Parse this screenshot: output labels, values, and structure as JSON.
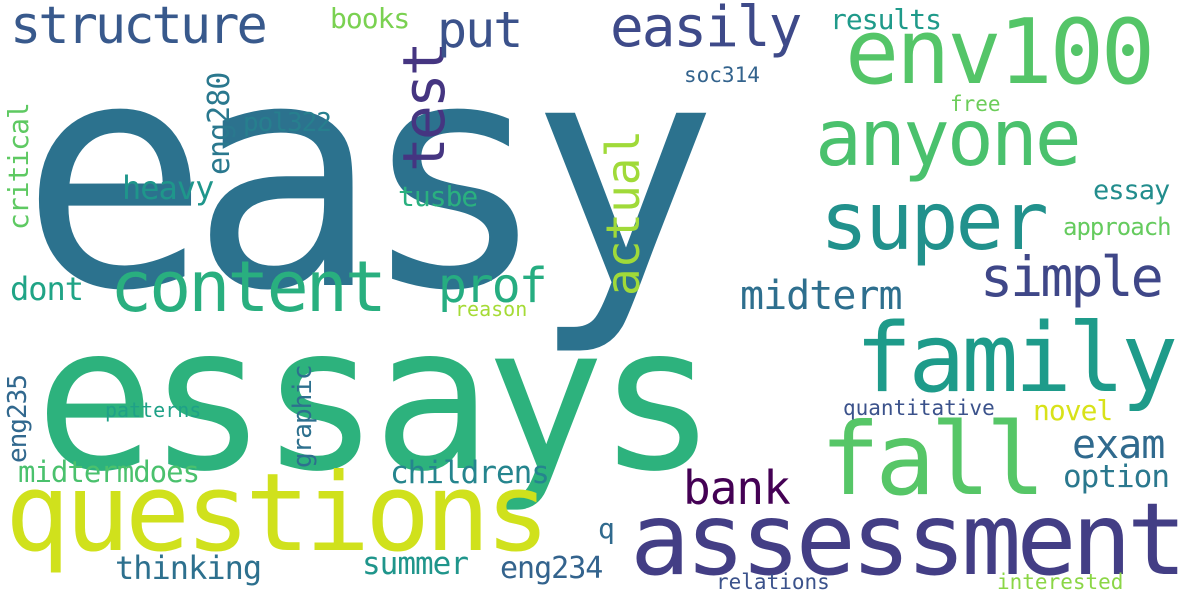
{
  "words": [
    {
      "key": "easy",
      "text": "easy",
      "color": "#2c728e"
    },
    {
      "key": "essays",
      "text": "essays",
      "color": "#2db27d"
    },
    {
      "key": "questions",
      "text": "questions",
      "color": "#d0e11c"
    },
    {
      "key": "assessment",
      "text": "assessment",
      "color": "#433e85"
    },
    {
      "key": "env100",
      "text": "env100",
      "color": "#54c568"
    },
    {
      "key": "anyone",
      "text": "anyone",
      "color": "#4ac16d"
    },
    {
      "key": "super",
      "text": "super",
      "color": "#21918c"
    },
    {
      "key": "family",
      "text": "family",
      "color": "#1e9b8a"
    },
    {
      "key": "fall",
      "text": "fall",
      "color": "#56c667"
    },
    {
      "key": "content",
      "text": "content",
      "color": "#29af7f"
    },
    {
      "key": "structure",
      "text": "structure",
      "color": "#38598c"
    },
    {
      "key": "easily",
      "text": "easily",
      "color": "#3e4a89"
    },
    {
      "key": "test",
      "text": "test",
      "color": "#453581"
    },
    {
      "key": "put",
      "text": "put",
      "color": "#3b528b"
    },
    {
      "key": "simple",
      "text": "simple",
      "color": "#3f4788"
    },
    {
      "key": "prof",
      "text": "prof",
      "color": "#26ad81"
    },
    {
      "key": "actual",
      "text": "actual",
      "color": "#a0da39"
    },
    {
      "key": "midterm",
      "text": "midterm",
      "color": "#2e6f8e"
    },
    {
      "key": "bank",
      "text": "bank",
      "color": "#440154"
    },
    {
      "key": "exam",
      "text": "exam",
      "color": "#306a8e"
    },
    {
      "key": "heavy",
      "text": "heavy",
      "color": "#1f968b"
    },
    {
      "key": "eng280",
      "text": "eng280",
      "color": "#2a788e"
    },
    {
      "key": "critical",
      "text": "critical",
      "color": "#5ec962"
    },
    {
      "key": "books",
      "text": "books",
      "color": "#7ad151"
    },
    {
      "key": "results",
      "text": "results",
      "color": "#1f9a8a"
    },
    {
      "key": "soc314",
      "text": "soc314",
      "color": "#33638d"
    },
    {
      "key": "free",
      "text": "free",
      "color": "#6ccd5a"
    },
    {
      "key": "pol322",
      "text": "pol322",
      "color": "#277f8e"
    },
    {
      "key": "tusbe",
      "text": "tusbe",
      "color": "#2ab07f"
    },
    {
      "key": "essay",
      "text": "essay",
      "color": "#228d8d"
    },
    {
      "key": "approach",
      "text": "approach",
      "color": "#65cb5e"
    },
    {
      "key": "dont",
      "text": "dont",
      "color": "#20a486"
    },
    {
      "key": "reason",
      "text": "reason",
      "color": "#a5db36"
    },
    {
      "key": "graphic",
      "text": "graphic",
      "color": "#2d708e"
    },
    {
      "key": "eng235",
      "text": "eng235",
      "color": "#31688e"
    },
    {
      "key": "patterns",
      "text": "patterns",
      "color": "#1fa187"
    },
    {
      "key": "quantitative",
      "text": "quantitative",
      "color": "#3b528b"
    },
    {
      "key": "novel",
      "text": "novel",
      "color": "#d8e219"
    },
    {
      "key": "midtermdoes",
      "text": "midtermdoes",
      "color": "#4ac16d"
    },
    {
      "key": "childrens",
      "text": "childrens",
      "color": "#25858e"
    },
    {
      "key": "option",
      "text": "option",
      "color": "#2a788e"
    },
    {
      "key": "q",
      "text": "q",
      "color": "#306a8e"
    },
    {
      "key": "thinking",
      "text": "thinking",
      "color": "#2d708e"
    },
    {
      "key": "summer",
      "text": "summer",
      "color": "#1f958b"
    },
    {
      "key": "eng234",
      "text": "eng234",
      "color": "#33638d"
    },
    {
      "key": "relations",
      "text": "relations",
      "color": "#3b528b"
    },
    {
      "key": "interested",
      "text": "interested",
      "color": "#8bd646"
    }
  ]
}
